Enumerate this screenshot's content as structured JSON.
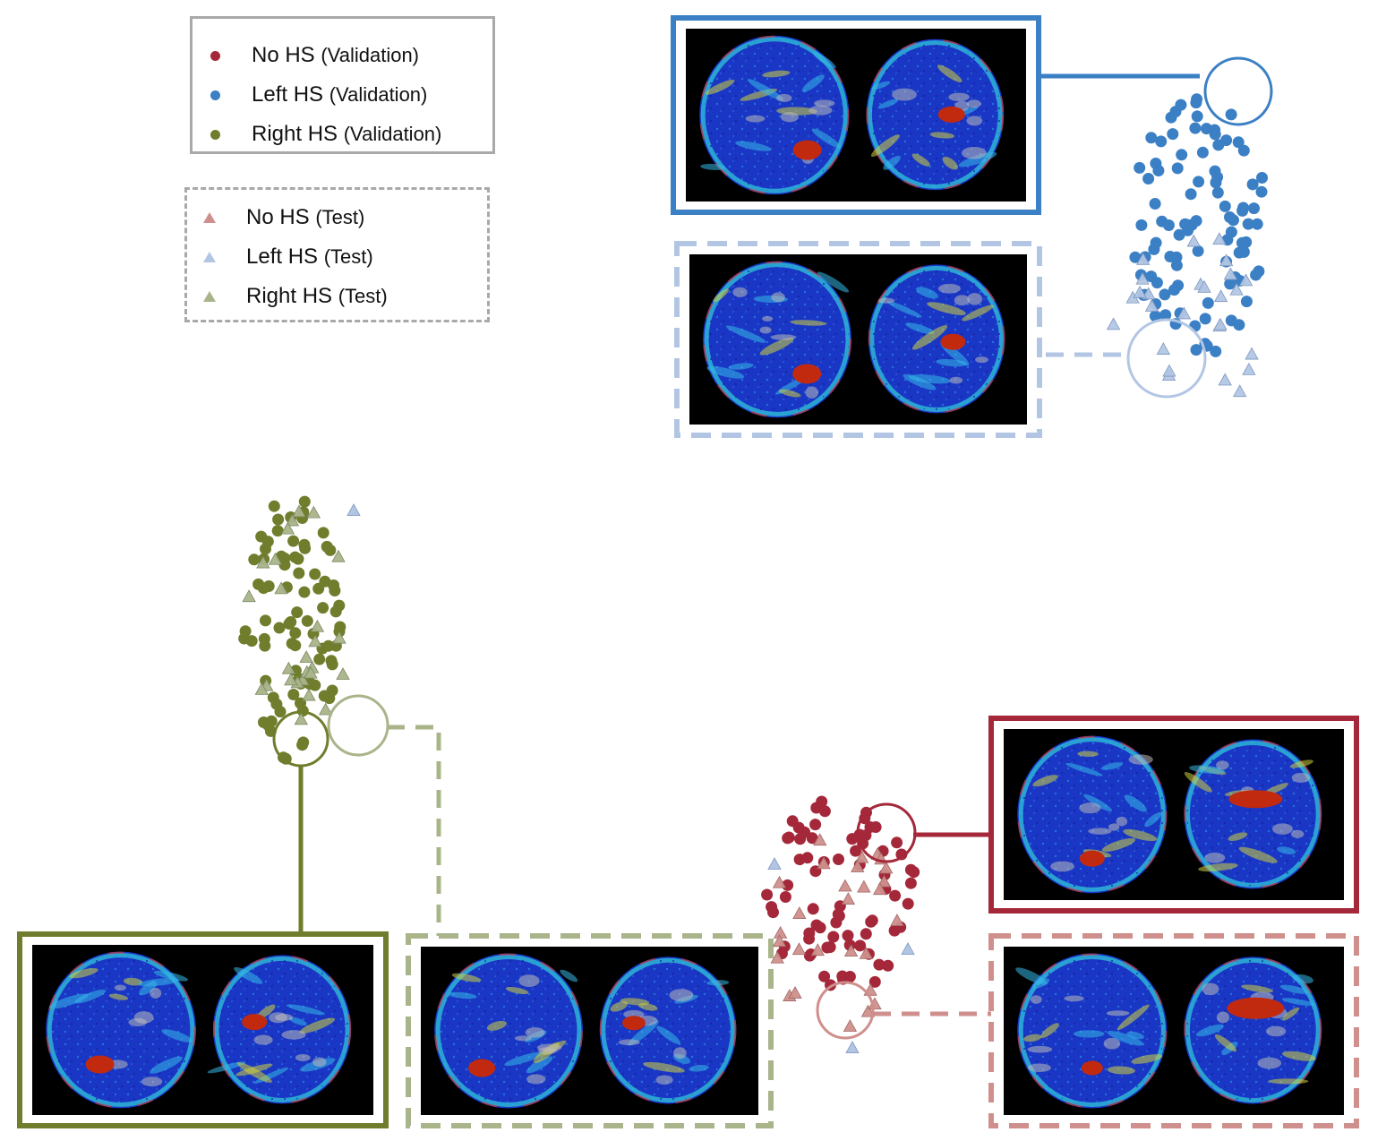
{
  "legend_validation": {
    "items": [
      {
        "label": "No HS",
        "sub": "(Validation)",
        "color": "#a4283a",
        "marker": "dot"
      },
      {
        "label": "Left HS",
        "sub": "(Validation)",
        "color": "#3b7fc4",
        "marker": "dot"
      },
      {
        "label": "Right HS",
        "sub": "(Validation)",
        "color": "#6f7d2c",
        "marker": "dot"
      }
    ]
  },
  "legend_test": {
    "items": [
      {
        "label": "No HS",
        "sub": "(Test)",
        "color": "#cf8f8c",
        "marker": "triangle"
      },
      {
        "label": "Left HS",
        "sub": "(Test)",
        "color": "#b2c6e4",
        "marker": "triangle"
      },
      {
        "label": "Right HS",
        "sub": "(Test)",
        "color": "#a9b48a",
        "marker": "triangle"
      }
    ]
  },
  "colors": {
    "no_hs_validation": "#a4283a",
    "left_hs_validation": "#3b7fc4",
    "right_hs_validation": "#6f7d2c",
    "no_hs_test": "#cf8f8c",
    "left_hs_test": "#b2c6e4",
    "right_hs_test": "#a9b48a",
    "legend_border": "#a9a9a9"
  }
}
